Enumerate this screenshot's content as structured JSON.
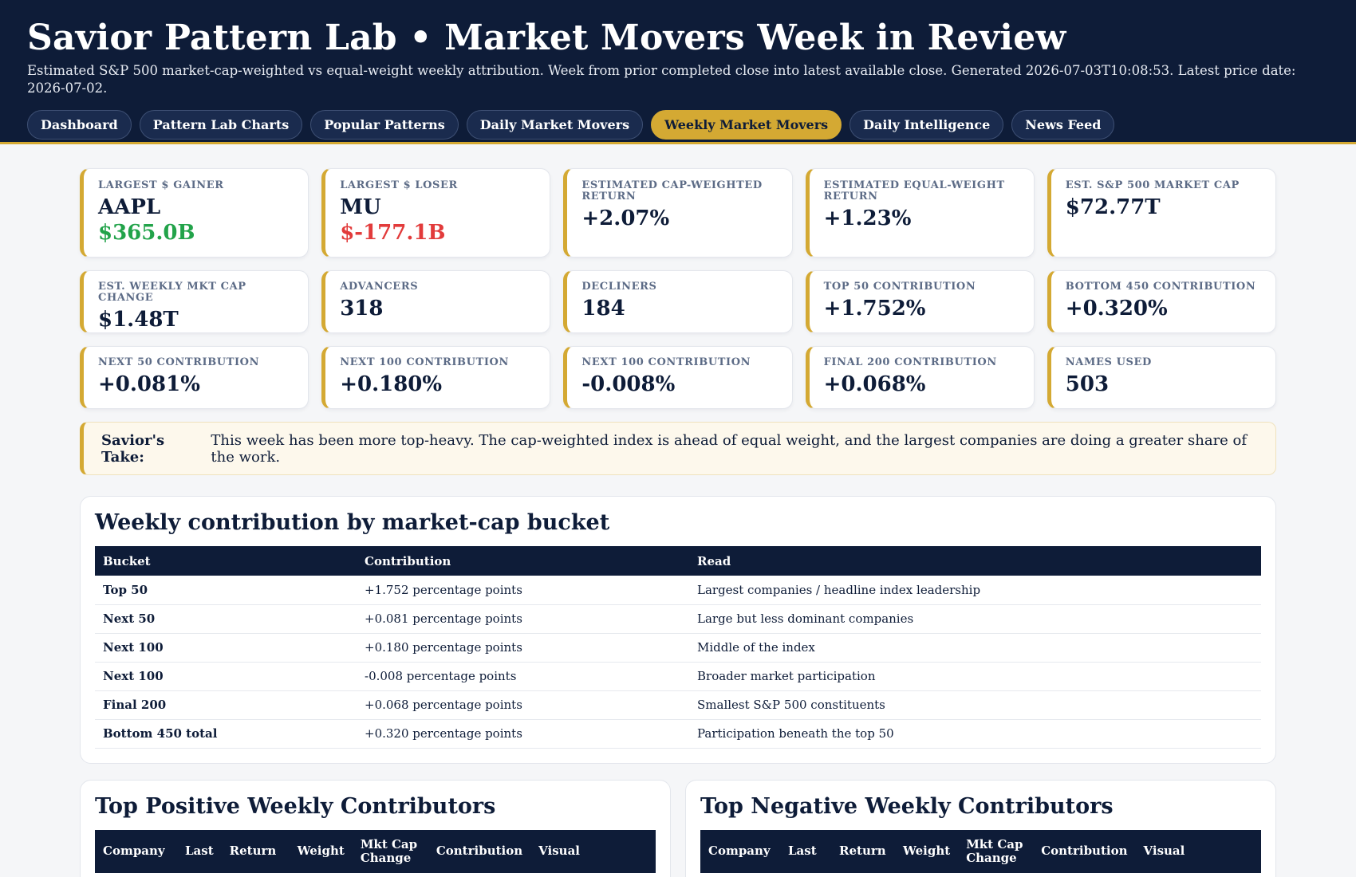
{
  "header": {
    "title": "Savior Pattern Lab • Market Movers Week in Review",
    "subtitle": "Estimated S&P 500 market-cap-weighted vs equal-weight weekly attribution. Week from prior completed close into latest available close. Generated 2026-07-03T10:08:53. Latest price date: 2026-07-02."
  },
  "nav": [
    "Dashboard",
    "Pattern Lab Charts",
    "Popular Patterns",
    "Daily Market Movers",
    "Weekly Market Movers",
    "Daily Intelligence",
    "News Feed"
  ],
  "nav_active": "Weekly Market Movers",
  "cards_row1": [
    {
      "label": "Largest $ Gainer",
      "value": "AAPL",
      "sub": "$365.0B"
    },
    {
      "label": "Largest $ Loser",
      "value": "MU",
      "sub": "$-177.1B"
    },
    {
      "label": "Estimated Cap-Weighted Return",
      "value": "+2.07%"
    },
    {
      "label": "Estimated Equal-Weight Return",
      "value": "+1.23%"
    },
    {
      "label": "Est. S&P 500 Market Cap",
      "value": "$72.77T"
    }
  ],
  "cards_row2": [
    {
      "label": "Est. Weekly Mkt Cap Change",
      "value": "$1.48T"
    },
    {
      "label": "Advancers",
      "value": "318"
    },
    {
      "label": "Decliners",
      "value": "184"
    },
    {
      "label": "Top 50 Contribution",
      "value": "+1.752%"
    },
    {
      "label": "Bottom 450 Contribution",
      "value": "+0.320%"
    }
  ],
  "cards_row3": [
    {
      "label": "Next 50 Contribution",
      "value": "+0.081%"
    },
    {
      "label": "Next 100 Contribution",
      "value": "+0.180%"
    },
    {
      "label": "Next 100 Contribution",
      "value": "-0.008%"
    },
    {
      "label": "Final 200 Contribution",
      "value": "+0.068%"
    },
    {
      "label": "Names Used",
      "value": "503"
    }
  ],
  "take": {
    "label": "Savior's Take:",
    "text": "This week has been more top-heavy. The cap-weighted index is ahead of equal weight, and the largest companies are doing a greater share of the work."
  },
  "bucket_panel": {
    "title": "Weekly contribution by market-cap bucket",
    "headers": [
      "Bucket",
      "Contribution",
      "Read"
    ],
    "rows": [
      {
        "bucket": "Top 50",
        "contribution": "+1.752 percentage points",
        "read": "Largest companies / headline index leadership"
      },
      {
        "bucket": "Next 50",
        "contribution": "+0.081 percentage points",
        "read": "Large but less dominant companies"
      },
      {
        "bucket": "Next 100",
        "contribution": "+0.180 percentage points",
        "read": "Middle of the index"
      },
      {
        "bucket": "Next 100",
        "contribution": "-0.008 percentage points",
        "read": "Broader market participation"
      },
      {
        "bucket": "Final 200",
        "contribution": "+0.068 percentage points",
        "read": "Smallest S&P 500 constituents"
      },
      {
        "bucket": "Bottom 450 total",
        "contribution": "+0.320 percentage points",
        "read": "Participation beneath the top 50"
      }
    ]
  },
  "positive_panel": {
    "title": "Top Positive Weekly Contributors",
    "headers": [
      "Company",
      "Last",
      "Return",
      "Weight",
      "Mkt Cap Change",
      "Contribution",
      "Visual"
    ]
  },
  "negative_panel": {
    "title": "Top Negative Weekly Contributors",
    "headers": [
      "Company",
      "Last",
      "Return",
      "Weight",
      "Mkt Cap Change",
      "Contribution",
      "Visual"
    ]
  },
  "colors": {
    "navy": "#0e1c38",
    "gold": "#d4a933",
    "gain": "#22a34a",
    "loss": "#e23b3b"
  }
}
